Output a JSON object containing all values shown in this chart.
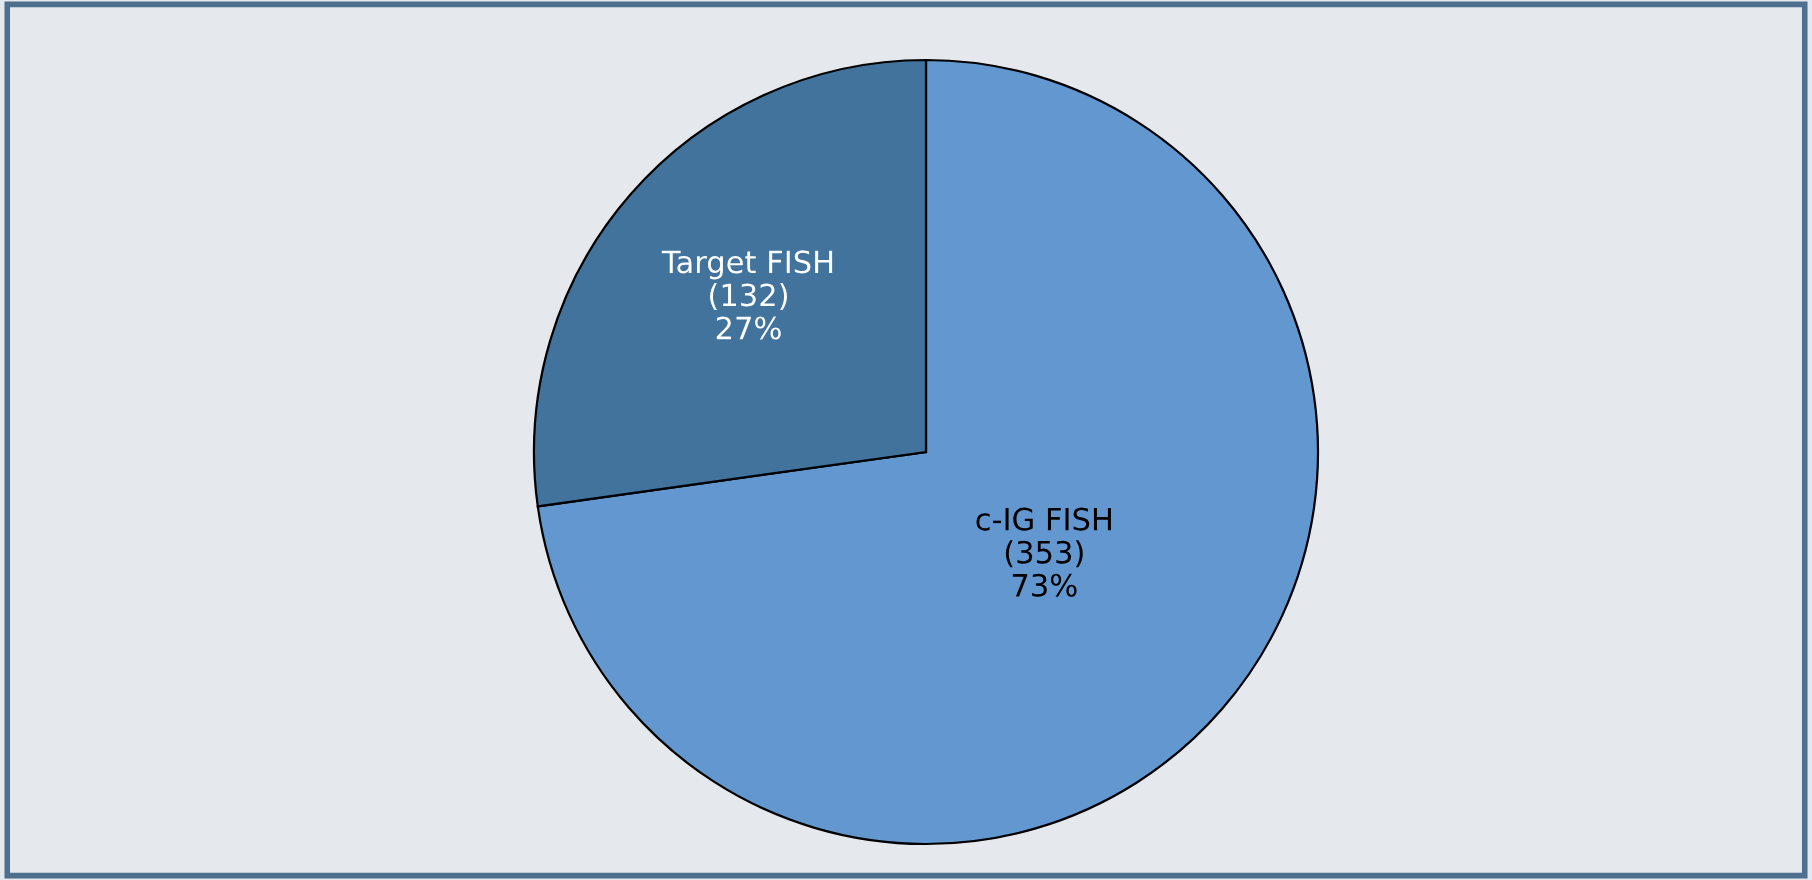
{
  "chart_data": {
    "type": "pie",
    "categories": [
      "c-IG FISH",
      "Target FISH"
    ],
    "values": [
      353,
      132
    ],
    "value_labels": [
      "(353)\n73%",
      "(132)\n27%"
    ],
    "colors": [
      "#6397d0",
      "#41739c"
    ]
  }
}
